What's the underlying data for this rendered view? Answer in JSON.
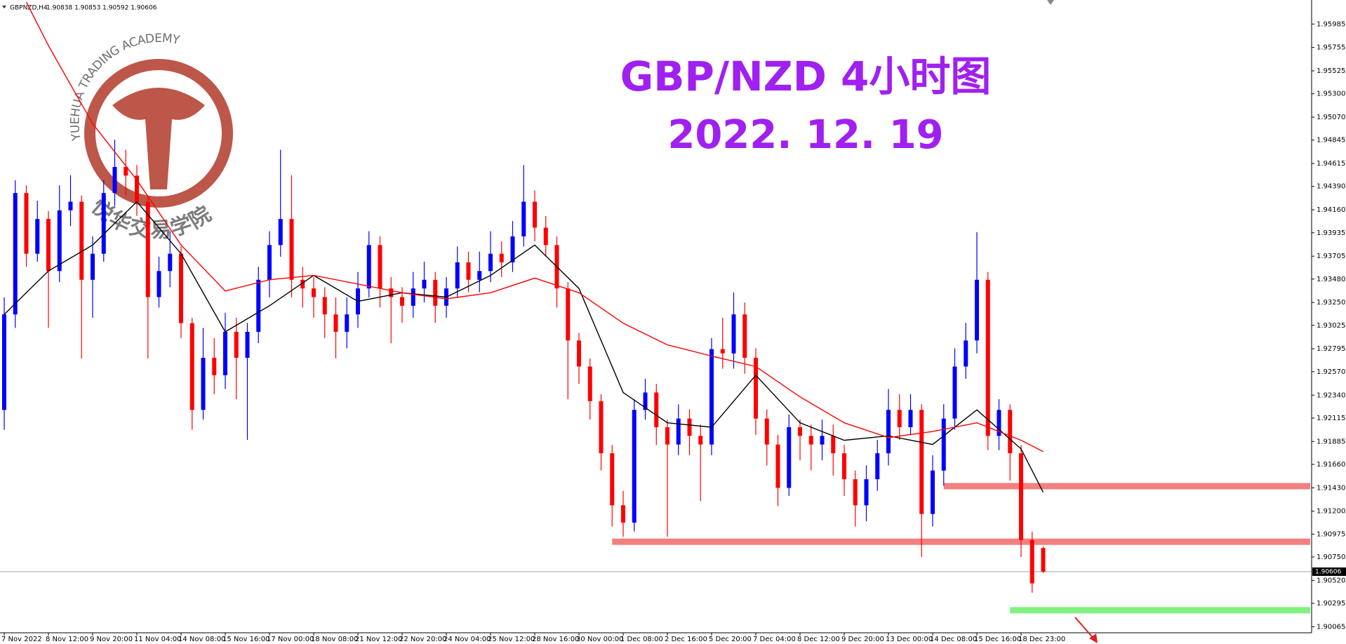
{
  "chart_data": {
    "type": "candlestick",
    "symbol": "GBPNZD,H4",
    "ohlc_text": "1.90838 1.90853 1.90592 1.90606",
    "title": "GBP/NZD 4小时图",
    "subtitle": "2022. 12. 19",
    "watermark": "YUEHUA TRADING ACADEMY",
    "watermark_cn": "悦华交易学院",
    "bull_color": "#0000ff",
    "bear_color": "#ff0000",
    "categories": [
      "7 Nov 2022",
      null,
      null,
      null,
      "8 Nov 12:00",
      null,
      null,
      null,
      "9 Nov 20:00",
      null,
      null,
      null,
      "11 Nov 04:00",
      null,
      null,
      null,
      "14 Nov 08:00",
      null,
      null,
      null,
      "15 Nov 16:00",
      null,
      null,
      null,
      "17 Nov 00:00",
      null,
      null,
      null,
      "18 Nov 08:00",
      null,
      null,
      null,
      "21 Nov 12:00",
      null,
      null,
      null,
      "22 Nov 20:00",
      null,
      null,
      null,
      "24 Nov 04:00",
      null,
      null,
      null,
      "25 Nov 12:00",
      null,
      null,
      null,
      "28 Nov 16:00",
      null,
      null,
      null,
      "30 Nov 00:00",
      null,
      null,
      null,
      "1 Dec 08:00",
      null,
      null,
      null,
      "2 Dec 16:00",
      null,
      null,
      null,
      "5 Dec 20:00",
      null,
      null,
      null,
      "7 Dec 04:00",
      null,
      null,
      null,
      "8 Dec 12:00",
      null,
      null,
      null,
      "9 Dec 20:00",
      null,
      null,
      null,
      "13 Dec 00:00",
      null,
      null,
      null,
      "14 Dec 08:00",
      null,
      null,
      null,
      "15 Dec 16:00",
      null,
      null,
      null,
      "18 Dec 23:00",
      null,
      null
    ],
    "open": [
      1.92195,
      1.93133,
      1.94325,
      1.93729,
      1.9407,
      1.93559,
      1.94155,
      1.9424,
      1.93473,
      1.93729,
      1.94325,
      1.94581,
      1.94496,
      1.9424,
      1.93303,
      1.93559,
      1.93729,
      1.93047,
      1.92195,
      1.92707,
      1.92536,
      1.92962,
      1.92707,
      1.92962,
      1.93473,
      1.93814,
      1.9407,
      1.93473,
      1.93388,
      1.93303,
      1.93133,
      1.92962,
      1.93133,
      1.93388,
      1.93814,
      1.93388,
      1.93303,
      1.93218,
      1.93388,
      1.93473,
      1.93218,
      1.93388,
      1.93644,
      1.93473,
      1.93559,
      1.93729,
      1.93644,
      1.93899,
      1.9424,
      1.93985,
      1.93814,
      1.93388,
      1.92877,
      1.92621,
      1.92281,
      1.91769,
      1.91258,
      1.91088,
      1.92195,
      1.92366,
      1.92025,
      1.91855,
      1.9211,
      1.9194,
      1.91855,
      1.92792,
      1.9275,
      1.93133,
      1.92707,
      1.9211,
      1.91855,
      1.91429,
      1.92025,
      1.9194,
      1.91855,
      1.9194,
      1.91769,
      1.91514,
      1.91258,
      1.91514,
      1.91769,
      1.92195,
      1.92025,
      1.92195,
      1.91173,
      1.91599,
      1.9211,
      1.92621,
      1.92877,
      1.93473,
      1.9194,
      1.92195,
      1.91769,
      1.90917,
      1.90838
    ],
    "high": [
      1.933,
      1.9445,
      1.944,
      1.9425,
      1.9415,
      1.944,
      1.945,
      1.943,
      1.939,
      1.9445,
      1.9485,
      1.9475,
      1.946,
      1.943,
      1.937,
      1.9395,
      1.938,
      1.931,
      1.93,
      1.929,
      1.9315,
      1.931,
      1.9305,
      1.936,
      1.9395,
      1.9475,
      1.945,
      1.936,
      1.935,
      1.934,
      1.933,
      1.933,
      1.9355,
      1.9395,
      1.939,
      1.935,
      1.934,
      1.9355,
      1.9365,
      1.9355,
      1.935,
      1.938,
      1.9375,
      1.9375,
      1.9395,
      1.9385,
      1.9405,
      1.946,
      1.9435,
      1.941,
      1.939,
      1.9345,
      1.9295,
      1.927,
      1.9235,
      1.9185,
      1.914,
      1.923,
      1.925,
      1.9245,
      1.921,
      1.9225,
      1.922,
      1.9205,
      1.929,
      1.931,
      1.9335,
      1.9325,
      1.928,
      1.922,
      1.9195,
      1.9215,
      1.921,
      1.9205,
      1.921,
      1.9205,
      1.9185,
      1.916,
      1.9165,
      1.919,
      1.924,
      1.9235,
      1.9235,
      1.9225,
      1.9175,
      1.9225,
      1.928,
      1.9305,
      1.9394,
      1.9355,
      1.923,
      1.9225,
      1.9185,
      1.91,
      1.90853
    ],
    "low": [
      1.92,
      1.93,
      1.936,
      1.9365,
      1.93,
      1.9345,
      1.94,
      1.927,
      1.931,
      1.9365,
      1.942,
      1.943,
      1.941,
      1.927,
      1.932,
      1.934,
      1.929,
      1.92,
      1.921,
      1.9235,
      1.924,
      1.923,
      1.919,
      1.9285,
      1.933,
      1.937,
      1.933,
      1.932,
      1.931,
      1.929,
      1.927,
      1.928,
      1.93,
      1.933,
      1.932,
      1.9285,
      1.9305,
      1.931,
      1.9325,
      1.9305,
      1.931,
      1.933,
      1.9335,
      1.9335,
      1.9345,
      1.935,
      1.9355,
      1.938,
      1.9385,
      1.937,
      1.932,
      1.923,
      1.9245,
      1.921,
      1.916,
      1.9105,
      1.9095,
      1.91,
      1.921,
      1.9185,
      1.9095,
      1.9175,
      1.9175,
      1.913,
      1.9175,
      1.926,
      1.926,
      1.9255,
      1.9195,
      1.9165,
      1.9125,
      1.9135,
      1.917,
      1.916,
      1.917,
      1.9155,
      1.9135,
      1.9105,
      1.911,
      1.914,
      1.9165,
      1.919,
      1.9195,
      1.9075,
      1.9105,
      1.9145,
      1.92,
      1.925,
      1.9275,
      1.918,
      1.918,
      1.915,
      1.9075,
      1.904,
      1.90592
    ],
    "close": [
      1.93133,
      1.94325,
      1.93729,
      1.9407,
      1.93559,
      1.94155,
      1.9424,
      1.93473,
      1.93729,
      1.94325,
      1.94581,
      1.94496,
      1.9424,
      1.93303,
      1.93559,
      1.93729,
      1.93047,
      1.92195,
      1.92707,
      1.92536,
      1.92962,
      1.92707,
      1.92962,
      1.93473,
      1.93814,
      1.9407,
      1.93473,
      1.93388,
      1.93303,
      1.93133,
      1.92962,
      1.93133,
      1.93388,
      1.93814,
      1.93388,
      1.93303,
      1.93218,
      1.93388,
      1.93473,
      1.93218,
      1.93388,
      1.93644,
      1.93473,
      1.93559,
      1.93729,
      1.93644,
      1.93899,
      1.9424,
      1.93985,
      1.93814,
      1.93388,
      1.92877,
      1.92621,
      1.92281,
      1.91769,
      1.91258,
      1.91088,
      1.92195,
      1.92366,
      1.92025,
      1.91855,
      1.9211,
      1.9194,
      1.91855,
      1.92792,
      1.9275,
      1.93133,
      1.92707,
      1.9211,
      1.91855,
      1.91429,
      1.92025,
      1.9194,
      1.91855,
      1.9194,
      1.91769,
      1.91514,
      1.91258,
      1.91514,
      1.91769,
      1.92195,
      1.92025,
      1.92195,
      1.91173,
      1.91599,
      1.9211,
      1.92621,
      1.92877,
      1.93473,
      1.9194,
      1.92195,
      1.91769,
      1.90917,
      1.90491,
      1.90606
    ],
    "series": [
      {
        "color": "#000000",
        "x": [
          0,
          4,
          8,
          12,
          16,
          20,
          24,
          28,
          32,
          36,
          40,
          44,
          48,
          52,
          56,
          60,
          64,
          68,
          72,
          76,
          80,
          84,
          88,
          92,
          94
        ],
        "values": [
          1.93133,
          1.93559,
          1.93814,
          1.9424,
          1.93729,
          1.92962,
          1.93218,
          1.93516,
          1.93261,
          1.93346,
          1.93303,
          1.93516,
          1.93814,
          1.93388,
          1.92366,
          1.92068,
          1.92025,
          1.92536,
          1.92068,
          1.91897,
          1.9194,
          1.91855,
          1.92195,
          1.91812,
          1.91386
        ]
      },
      {
        "color": "#ff0000",
        "x": [
          2,
          4,
          8,
          12,
          16,
          20,
          24,
          28,
          32,
          36,
          40,
          44,
          48,
          52,
          56,
          60,
          64,
          68,
          72,
          76,
          80,
          84,
          88,
          92,
          94
        ],
        "values": [
          1.962,
          1.95774,
          1.95007,
          1.94453,
          1.93814,
          1.93363,
          1.93473,
          1.93516,
          1.93431,
          1.93346,
          1.93286,
          1.93346,
          1.9349,
          1.93346,
          1.93047,
          1.92834,
          1.92724,
          1.92621,
          1.92323,
          1.92068,
          1.91923,
          1.91983,
          1.92068,
          1.91897,
          1.91786
        ]
      }
    ],
    "levels": [
      {
        "value": 1.91446,
        "start": 85,
        "color": "#f28080"
      },
      {
        "value": 1.909,
        "start": 55,
        "color": "#f28080"
      },
      {
        "value": 1.90227,
        "start": 91,
        "color": "#80f080"
      }
    ],
    "ylim": [
      1.90006,
      1.96221
    ],
    "yticks": [
      1.95985,
      1.95755,
      1.95525,
      {
        "value": 1.953,
        "label": "1.95300"
      },
      {
        "value": 1.9507,
        "label": "1.95070"
      },
      1.94845,
      1.94615,
      {
        "value": 1.9439,
        "label": "1.94390"
      },
      {
        "value": 1.9416,
        "label": "1.94160"
      },
      1.93935,
      1.93705,
      {
        "value": 1.9348,
        "label": "1.93480"
      },
      {
        "value": 1.9325,
        "label": "1.93250"
      },
      1.93025,
      1.92795,
      {
        "value": 1.9257,
        "label": "1.92570"
      },
      {
        "value": 1.9234,
        "label": "1.92340"
      },
      1.92115,
      1.91885,
      {
        "value": 1.9166,
        "label": "1.91660"
      },
      {
        "value": 1.9143,
        "label": "1.91430"
      },
      {
        "value": 1.912,
        "label": "1.91200"
      },
      1.90975,
      {
        "value": 1.9075,
        "label": "1.90750"
      },
      {
        "value": 1.9052,
        "label": "1.90520"
      },
      1.90295,
      1.90065
    ]
  }
}
